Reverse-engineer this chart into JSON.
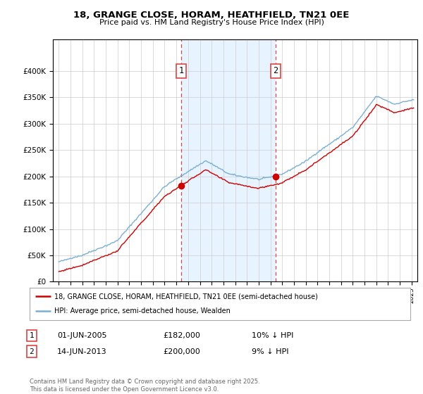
{
  "title": "18, GRANGE CLOSE, HORAM, HEATHFIELD, TN21 0EE",
  "subtitle": "Price paid vs. HM Land Registry's House Price Index (HPI)",
  "legend_line1": "18, GRANGE CLOSE, HORAM, HEATHFIELD, TN21 0EE (semi-detached house)",
  "legend_line2": "HPI: Average price, semi-detached house, Wealden",
  "transaction1_label": "1",
  "transaction1_date": "01-JUN-2005",
  "transaction1_price": "£182,000",
  "transaction1_hpi": "10% ↓ HPI",
  "transaction2_label": "2",
  "transaction2_date": "14-JUN-2013",
  "transaction2_price": "£200,000",
  "transaction2_hpi": "9% ↓ HPI",
  "vline1_x": 2005.42,
  "vline2_x": 2013.45,
  "sale1_x": 2005.42,
  "sale1_y": 182000,
  "sale2_x": 2013.45,
  "sale2_y": 200000,
  "red_color": "#cc0000",
  "blue_color": "#7aafd4",
  "shade_color": "#ddeeff",
  "vline_color": "#dd4444",
  "footer": "Contains HM Land Registry data © Crown copyright and database right 2025.\nThis data is licensed under the Open Government Licence v3.0.",
  "ylim": [
    0,
    460000
  ],
  "xlim_start": 1994.5,
  "xlim_end": 2025.5,
  "yticks": [
    0,
    50000,
    100000,
    150000,
    200000,
    250000,
    300000,
    350000,
    400000
  ],
  "background_color": "#ffffff"
}
